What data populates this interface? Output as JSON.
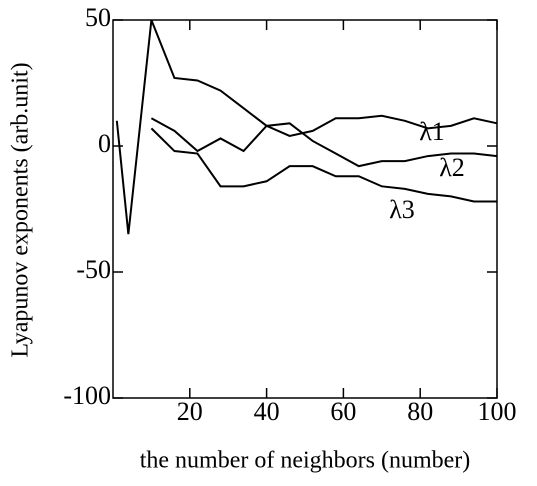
{
  "chart_data": {
    "type": "line",
    "x_label": "the number of neighbors  (number)",
    "y_label": "Lyapunov exponents (arb.unit)",
    "xlim": [
      0,
      100
    ],
    "ylim": [
      -100,
      50
    ],
    "xticks": [
      20,
      40,
      60,
      80,
      100
    ],
    "yticks": [
      -100,
      -50,
      0,
      50
    ],
    "series": [
      {
        "name": "λ1",
        "color": "#000000",
        "x": [
          1,
          4,
          10,
          16,
          22,
          28,
          34,
          40,
          46,
          52,
          58,
          64,
          70,
          76,
          82,
          88,
          94,
          100
        ],
        "values": [
          10,
          -35,
          50,
          27,
          26,
          22,
          15,
          8,
          4,
          6,
          11,
          11,
          12,
          10,
          7,
          8,
          11,
          9
        ]
      },
      {
        "name": "λ2",
        "color": "#000000",
        "x": [
          10,
          16,
          22,
          28,
          34,
          40,
          46,
          52,
          58,
          64,
          70,
          76,
          82,
          88,
          94,
          100
        ],
        "values": [
          11,
          6,
          -2,
          3,
          -2,
          8,
          9,
          2,
          -3,
          -8,
          -6,
          -6,
          -4,
          -3,
          -3,
          -4
        ]
      },
      {
        "name": "λ3",
        "color": "#000000",
        "x": [
          10,
          16,
          22,
          28,
          34,
          40,
          46,
          52,
          58,
          64,
          70,
          76,
          82,
          88,
          94,
          100
        ],
        "values": [
          7,
          -2,
          -3,
          -16,
          -16,
          -14,
          -8,
          -8,
          -12,
          -12,
          -16,
          -17,
          -19,
          -20,
          -22,
          -22
        ]
      }
    ]
  }
}
